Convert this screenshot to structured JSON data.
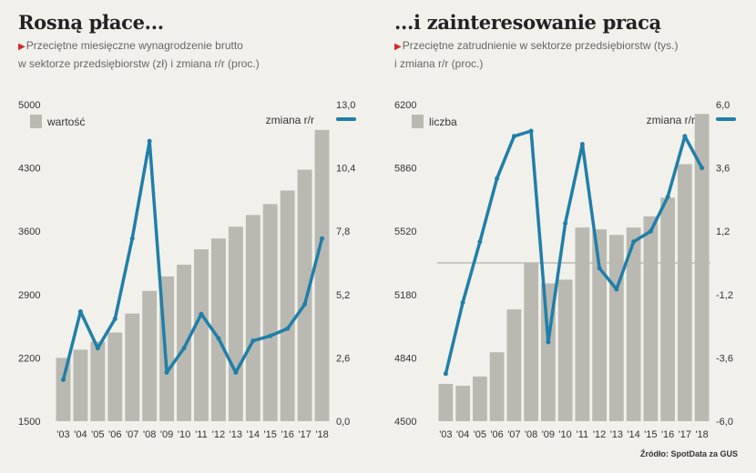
{
  "left": {
    "title": "Rosną płace...",
    "subtitle_line1": "Przeciętne miesięczne wynagrodzenie brutto",
    "subtitle_line2": "w sektorze przedsiębiorstw (zł) i zmiana r/r (proc.)"
  },
  "right": {
    "title": "...i zainteresowanie pracą",
    "subtitle_line1": "Przeciętne zatrudnienie w sektorze przedsiębiorstw (tys.)",
    "subtitle_line2": "i zmiana r/r (proc.)"
  },
  "source": "Źródło: SpotData za GUS",
  "colors": {
    "bar": "#b9b9b2",
    "line": "#1f7fa8",
    "text": "#333333",
    "accent": "#d6262a"
  },
  "chart_data": [
    {
      "type": "bar",
      "title": "Rosną płace...",
      "bar_series_name": "wartość",
      "line_series_name": "zmiana r/r",
      "x_ticks": [
        "'03",
        "'04",
        "'05",
        "'06",
        "'07",
        "'08",
        "'09",
        "'10",
        "'11",
        "'12",
        "'13",
        "'14",
        "'15",
        "'16",
        "'17",
        "'18"
      ],
      "y_left_ticks": [
        "5000",
        "4300",
        "3600",
        "2900",
        "2200",
        "1500"
      ],
      "y_right_ticks": [
        "13,0",
        "10,4",
        "7,8",
        "5,2",
        "2,6",
        "0,0"
      ],
      "ylim_left": [
        1500,
        5000
      ],
      "ylim_right": [
        0,
        13
      ],
      "x": [
        "2003",
        "2004",
        "2005",
        "2006",
        "2007",
        "2008",
        "2009",
        "2010",
        "2011",
        "2012",
        "2013",
        "2014",
        "2015",
        "2016",
        "2017",
        "2018"
      ],
      "bar_values": [
        2200,
        2290,
        2380,
        2480,
        2690,
        2940,
        3100,
        3230,
        3400,
        3520,
        3650,
        3780,
        3900,
        4050,
        4280,
        4720
      ],
      "line_values": [
        1.7,
        4.5,
        3.0,
        4.2,
        7.5,
        11.5,
        2.0,
        3.0,
        4.4,
        3.4,
        2.0,
        3.3,
        3.5,
        3.8,
        4.8,
        7.5
      ]
    },
    {
      "type": "bar",
      "title": "...i zainteresowanie pracą",
      "bar_series_name": "liczba",
      "line_series_name": "zmiana r/r",
      "x_ticks": [
        "'03",
        "'04",
        "'05",
        "'06",
        "'07",
        "'08",
        "'09",
        "'10",
        "'11",
        "'12",
        "'13",
        "'14",
        "'15",
        "'16",
        "'17",
        "'18"
      ],
      "y_left_ticks": [
        "6200",
        "5860",
        "5520",
        "5180",
        "4840",
        "4500"
      ],
      "y_right_ticks": [
        "6,0",
        "3,6",
        "1,2",
        "-1,2",
        "-3,6",
        "-6,0"
      ],
      "ylim_left": [
        4500,
        6200
      ],
      "ylim_right": [
        -6,
        6
      ],
      "x": [
        "2003",
        "2004",
        "2005",
        "2006",
        "2007",
        "2008",
        "2009",
        "2010",
        "2011",
        "2012",
        "2013",
        "2014",
        "2015",
        "2016",
        "2017",
        "2018"
      ],
      "bar_values": [
        4700,
        4690,
        4740,
        4870,
        5100,
        5350,
        5240,
        5260,
        5540,
        5530,
        5500,
        5540,
        5600,
        5700,
        5880,
        6150
      ],
      "line_values": [
        -4.2,
        -1.5,
        0.8,
        3.2,
        4.8,
        5.0,
        -3.0,
        1.5,
        4.5,
        -0.2,
        -1.0,
        0.8,
        1.2,
        2.5,
        4.8,
        3.6
      ]
    }
  ]
}
